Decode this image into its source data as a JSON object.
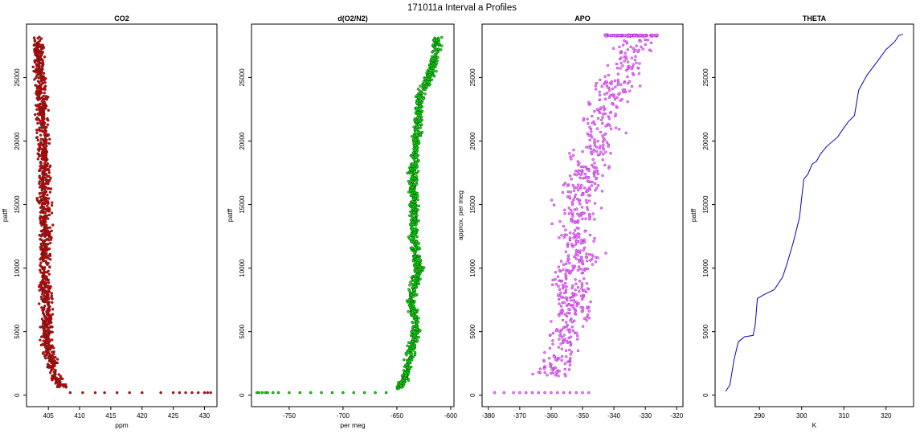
{
  "figure": {
    "title": "171011a   Interval a Profiles"
  },
  "chart_data": [
    {
      "type": "scatter",
      "title": "CO2",
      "xlabel": "ppm",
      "ylabel": "patff",
      "xlim": [
        401.5,
        432
      ],
      "ylim": [
        -900,
        29200
      ],
      "xticks": [
        405,
        410,
        415,
        420,
        425,
        430
      ],
      "yticks": [
        0,
        5000,
        10000,
        15000,
        20000,
        25000
      ],
      "point_color": "#e00000",
      "edge_color": "#222222",
      "profile_x": [
        403.2,
        403.5,
        403.8,
        404.0,
        404.2,
        404.3,
        404.4,
        404.6,
        404.3,
        404.5,
        404.8,
        404.6,
        405.2,
        405.6,
        405.5,
        406.2,
        406.8,
        407.3
      ],
      "profile_y": [
        28200,
        26500,
        24500,
        22000,
        20000,
        17500,
        15000,
        12500,
        10500,
        8000,
        6000,
        4500,
        3200,
        2600,
        2000,
        1500,
        1000,
        600
      ],
      "profile_noise": 0.8,
      "isolated_points": {
        "x": [
          408.5,
          410.5,
          412.5,
          414,
          416,
          418,
          420,
          423,
          425,
          426,
          427,
          428,
          429,
          430,
          430.5,
          431
        ],
        "y": [
          200,
          200,
          200,
          200,
          200,
          200,
          200,
          200,
          200,
          200,
          200,
          200,
          200,
          200,
          200,
          200
        ]
      }
    },
    {
      "type": "scatter",
      "title": "d(O2/N2)",
      "xlabel": "per meg",
      "ylabel": "patff",
      "xlim": [
        -785,
        -597
      ],
      "ylim": [
        -900,
        29200
      ],
      "xticks": [
        -750,
        -700,
        -650,
        -600
      ],
      "yticks": [
        0,
        5000,
        10000,
        15000,
        20000,
        25000
      ],
      "point_color": "#00ee00",
      "edge_color": "#1a1a1a",
      "profile_x": [
        -612,
        -615,
        -620,
        -628,
        -630,
        -633,
        -635,
        -634,
        -635,
        -630,
        -637,
        -632,
        -635,
        -640,
        -642,
        -648
      ],
      "profile_y": [
        28200,
        26500,
        25000,
        23500,
        21500,
        19500,
        17500,
        15000,
        12500,
        10000,
        7500,
        5500,
        4000,
        2500,
        1500,
        500
      ],
      "profile_noise": 3.5,
      "isolated_points": {
        "x": [
          -780,
          -778,
          -775,
          -772,
          -770,
          -765,
          -760,
          -750,
          -740,
          -730,
          -720,
          -710,
          -700,
          -690,
          -680,
          -670,
          -660
        ],
        "y": [
          200,
          200,
          200,
          200,
          200,
          200,
          200,
          200,
          200,
          200,
          200,
          200,
          200,
          200,
          200,
          200,
          200
        ]
      }
    },
    {
      "type": "scatter",
      "title": "APO",
      "xlabel": "",
      "ylabel": "approx. per meg",
      "xlim": [
        -382,
        -318
      ],
      "ylim": [
        -900,
        29200
      ],
      "xticks": [
        -380,
        -370,
        -360,
        -350,
        -340,
        -330,
        -320
      ],
      "yticks": [
        0,
        5000,
        10000,
        15000,
        20000,
        25000
      ],
      "point_color": "#ee82ee",
      "edge_color": "#9400d3",
      "band_top": {
        "y": 28300,
        "x_from": -343,
        "x_to": -326
      },
      "profile_x": [
        -332,
        -335,
        -338,
        -342,
        -344,
        -346,
        -350,
        -352,
        -352,
        -350,
        -355,
        -352,
        -356,
        -358,
        -360
      ],
      "profile_y": [
        28000,
        26500,
        25000,
        23000,
        21000,
        19000,
        17000,
        15000,
        13000,
        11000,
        9000,
        7000,
        5000,
        3000,
        1500
      ],
      "profile_noise": 5.5,
      "isolated_points": {
        "x": [
          -378,
          -375,
          -372,
          -370,
          -368,
          -366,
          -364,
          -362,
          -360,
          -358,
          -356,
          -354,
          -352,
          -350,
          -348
        ],
        "y": [
          200,
          200,
          200,
          200,
          200,
          200,
          200,
          200,
          200,
          200,
          200,
          200,
          200,
          200,
          200
        ]
      }
    },
    {
      "type": "line",
      "title": "THETA",
      "xlabel": "K",
      "ylabel": "patff",
      "xlim": [
        279.5,
        326.5
      ],
      "ylim": [
        -900,
        29200
      ],
      "xticks": [
        290,
        300,
        310,
        320
      ],
      "yticks": [
        0,
        5000,
        10000,
        15000,
        20000,
        25000
      ],
      "line_color": "#0000cc",
      "x": [
        282,
        283,
        283.5,
        284,
        285,
        286.5,
        288.5,
        289,
        289.5,
        291,
        293.5,
        295.5,
        296.5,
        298,
        299.5,
        300,
        300.5,
        301.5,
        302.5,
        303.5,
        304.5,
        306,
        308.5,
        309.5,
        311,
        312.5,
        313,
        313.5,
        314.5,
        315.5,
        318,
        320,
        322,
        323,
        324
      ],
      "y": [
        300,
        800,
        1800,
        2800,
        4200,
        4600,
        4700,
        5500,
        7600,
        7900,
        8300,
        9300,
        10300,
        12000,
        14000,
        15500,
        17000,
        17400,
        18200,
        18400,
        19000,
        19600,
        20300,
        20800,
        21500,
        22000,
        23000,
        24000,
        24600,
        25200,
        26300,
        27200,
        27800,
        28300,
        28400
      ]
    }
  ]
}
